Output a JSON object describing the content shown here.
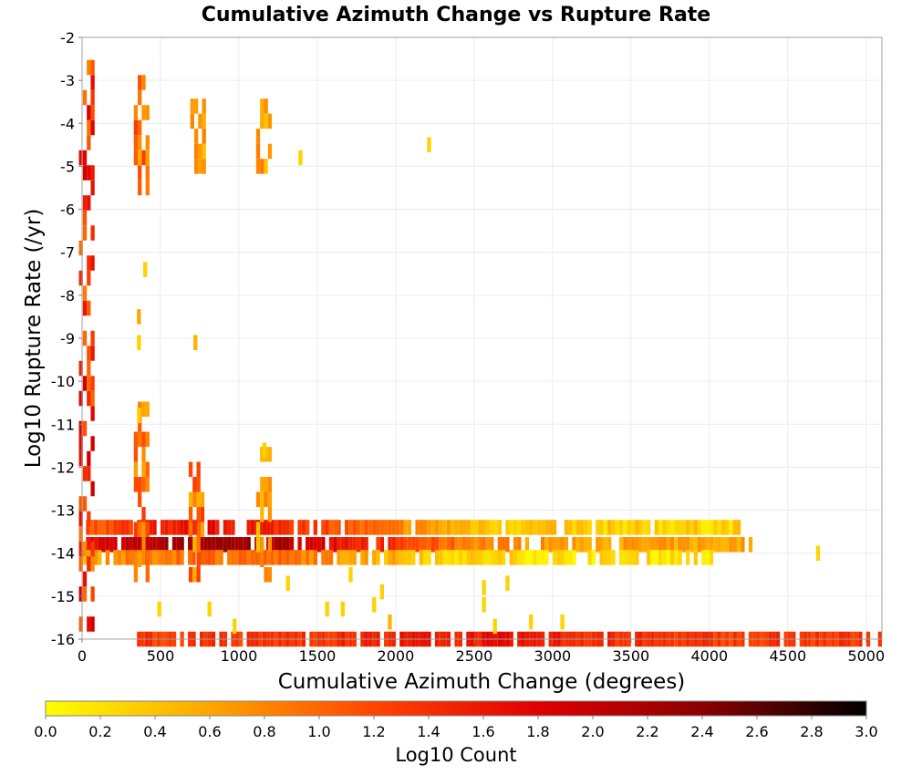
{
  "chart_data": {
    "type": "heatmap",
    "title": "Cumulative Azimuth Change vs Rupture Rate",
    "xlabel": "Cumulative Azimuth Change (degrees)",
    "ylabel": "Log10 Rupture Rate (/yr)",
    "xlim": [
      0,
      5100
    ],
    "ylim": [
      -16,
      -2
    ],
    "xticks": [
      "0",
      "500",
      "1000",
      "1500",
      "2000",
      "2500",
      "3000",
      "3500",
      "4000",
      "4500",
      "5000"
    ],
    "yticks": [
      "-2",
      "-3",
      "-4",
      "-5",
      "-6",
      "-7",
      "-8",
      "-9",
      "-10",
      "-11",
      "-12",
      "-13",
      "-14",
      "-15",
      "-16"
    ],
    "grid": true,
    "colorbar": {
      "label": "Log10 Count",
      "range": [
        0.0,
        3.0
      ],
      "ticks": [
        "0.0",
        "0.2",
        "0.4",
        "0.6",
        "0.8",
        "1.0",
        "1.2",
        "1.4",
        "1.6",
        "1.8",
        "2.0",
        "2.2",
        "2.4",
        "2.6",
        "2.8",
        "3.0"
      ],
      "colors": [
        "#ffff00",
        "#ffa500",
        "#ff4500",
        "#e00000",
        "#8b0000",
        "#000000"
      ]
    },
    "bands": [
      {
        "y": -13.8,
        "x_start": 0,
        "x_end": 4250,
        "peak_x": 850,
        "peak": 2.3,
        "tail": 0.6
      },
      {
        "y": -13.4,
        "x_start": 0,
        "x_end": 4200,
        "peak_x": 850,
        "peak": 1.6,
        "tail": 0.3
      },
      {
        "y": -14.1,
        "x_start": 0,
        "x_end": 4000,
        "peak_x": 900,
        "peak": 1.0,
        "tail": 0.2
      },
      {
        "y": -16.0,
        "x_start": 350,
        "x_end": 5100,
        "peak_x": 2500,
        "peak": 1.6,
        "tail": 1.3
      }
    ],
    "clusters": [
      {
        "x": 20,
        "y_min": -16.0,
        "y_max": -2.5,
        "value": 1.5
      },
      {
        "x": 370,
        "y_min": -5.5,
        "y_max": -2.8,
        "value": 1.0
      },
      {
        "x": 370,
        "y_min": -14.5,
        "y_max": -10.5,
        "value": 1.0
      },
      {
        "x": 730,
        "y_min": -5.0,
        "y_max": -3.3,
        "value": 0.7
      },
      {
        "x": 720,
        "y_min": -14.5,
        "y_max": -12.0,
        "value": 1.0
      },
      {
        "x": 1150,
        "y_min": -5.0,
        "y_max": -3.5,
        "value": 0.7
      },
      {
        "x": 1150,
        "y_min": -14.5,
        "y_max": -11.5,
        "value": 0.7
      }
    ],
    "scatter_cells": [
      {
        "x": 1380,
        "y": -4.8,
        "value": 0.3
      },
      {
        "x": 2200,
        "y": -4.5,
        "value": 0.3
      },
      {
        "x": 390,
        "y": -7.4,
        "value": 0.3
      },
      {
        "x": 350,
        "y": -8.5,
        "value": 0.6
      },
      {
        "x": 350,
        "y": -9.1,
        "value": 0.3
      },
      {
        "x": 710,
        "y": -9.1,
        "value": 0.5
      },
      {
        "x": 350,
        "y": -10.8,
        "value": 0.3
      },
      {
        "x": 1150,
        "y": -11.6,
        "value": 0.3
      },
      {
        "x": 1300,
        "y": -14.7,
        "value": 0.3
      },
      {
        "x": 1700,
        "y": -14.5,
        "value": 0.3
      },
      {
        "x": 1900,
        "y": -14.9,
        "value": 0.3
      },
      {
        "x": 2550,
        "y": -14.8,
        "value": 0.3
      },
      {
        "x": 2700,
        "y": -14.7,
        "value": 0.3
      },
      {
        "x": 1550,
        "y": -15.3,
        "value": 0.3
      },
      {
        "x": 1650,
        "y": -15.3,
        "value": 0.3
      },
      {
        "x": 1850,
        "y": -15.2,
        "value": 0.3
      },
      {
        "x": 1950,
        "y": -15.6,
        "value": 0.5
      },
      {
        "x": 2550,
        "y": -15.2,
        "value": 0.3
      },
      {
        "x": 2850,
        "y": -15.6,
        "value": 0.3
      },
      {
        "x": 3050,
        "y": -15.6,
        "value": 0.3
      },
      {
        "x": 960,
        "y": -15.7,
        "value": 0.3
      },
      {
        "x": 800,
        "y": -15.3,
        "value": 0.3
      },
      {
        "x": 480,
        "y": -15.3,
        "value": 0.3
      },
      {
        "x": 4680,
        "y": -14.0,
        "value": 0.3
      },
      {
        "x": 2620,
        "y": -15.7,
        "value": 0.3
      }
    ]
  }
}
